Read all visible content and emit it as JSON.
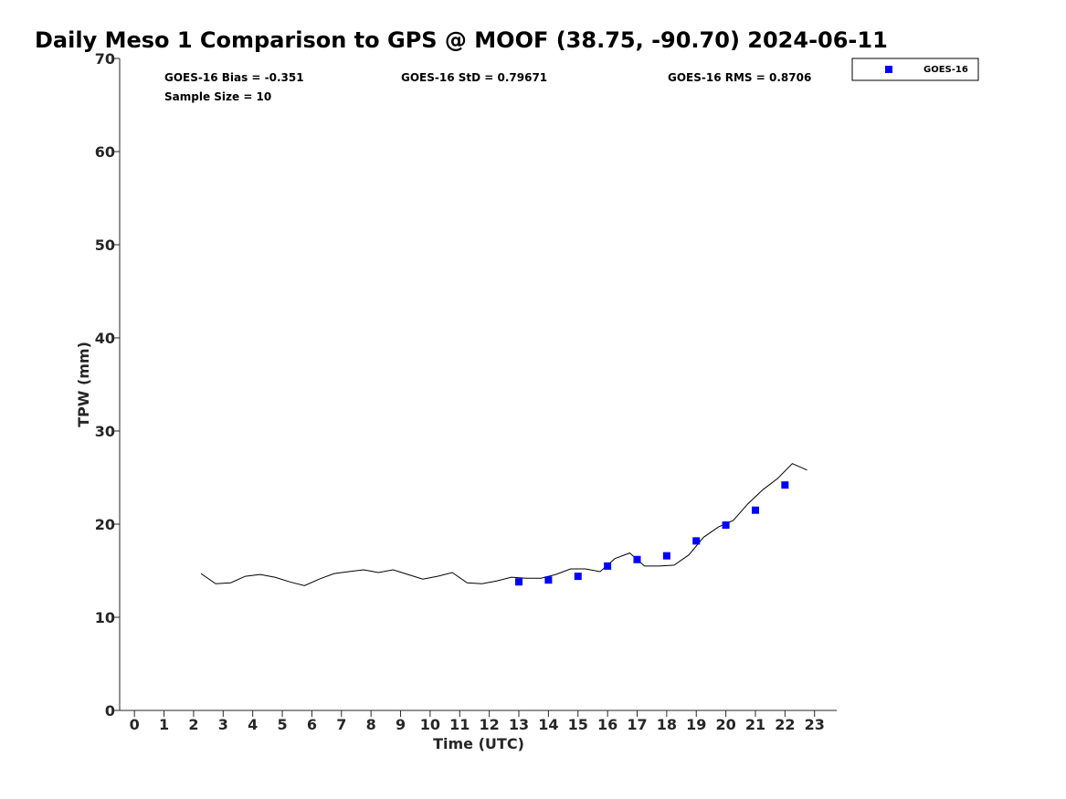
{
  "chart_data": {
    "type": "scatter",
    "title": "Daily Meso 1 Comparison to GPS @ MOOF (38.75, -90.70) 2024-06-11",
    "xlabel": "Time (UTC)",
    "ylabel": "TPW (mm)",
    "xlim": [
      -0.5,
      23.75
    ],
    "ylim": [
      0,
      70
    ],
    "xticks": [
      "0",
      "1",
      "2",
      "3",
      "4",
      "5",
      "6",
      "7",
      "8",
      "9",
      "10",
      "11",
      "12",
      "13",
      "14",
      "15",
      "16",
      "17",
      "18",
      "19",
      "20",
      "21",
      "22",
      "23"
    ],
    "yticks": [
      "0",
      "10",
      "20",
      "30",
      "40",
      "50",
      "60",
      "70"
    ],
    "grid": false,
    "legend_position": "outside-top-right",
    "stats": {
      "bias": "GOES-16 Bias = -0.351",
      "std": "GOES-16 StD = 0.79671",
      "rms": "GOES-16 RMS = 0.8706",
      "sample": "Sample Size = 10"
    },
    "series": [
      {
        "name": "GOES-16",
        "kind": "points",
        "marker": "square",
        "color": "#0000ff",
        "x": [
          13,
          14,
          15,
          16,
          17,
          18,
          19,
          20,
          21,
          22
        ],
        "y": [
          13.8,
          14.0,
          14.4,
          15.5,
          16.2,
          16.6,
          18.2,
          19.9,
          21.5,
          24.2
        ]
      },
      {
        "kind": "line",
        "color": "#000000",
        "x": [
          2.25,
          2.75,
          3.25,
          3.75,
          4.25,
          4.75,
          5.25,
          5.75,
          6.25,
          6.75,
          7.25,
          7.75,
          8.25,
          8.75,
          9.25,
          9.75,
          10.25,
          10.75,
          11.25,
          11.75,
          12.25,
          12.75,
          13.25,
          13.75,
          14.25,
          14.75,
          15.25,
          15.75,
          16.25,
          16.75,
          17.25,
          17.75,
          18.25,
          18.75,
          19.25,
          19.75,
          20.25,
          20.75,
          21.25,
          21.75,
          22.25,
          22.75
        ],
        "y": [
          14.7,
          13.6,
          13.7,
          14.4,
          14.6,
          14.3,
          13.8,
          13.4,
          14.1,
          14.7,
          14.9,
          15.1,
          14.8,
          15.1,
          14.6,
          14.1,
          14.4,
          14.8,
          13.7,
          13.6,
          13.9,
          14.3,
          14.2,
          14.2,
          14.6,
          15.2,
          15.2,
          14.9,
          16.3,
          16.9,
          15.5,
          15.5,
          15.6,
          16.7,
          18.6,
          19.7,
          20.4,
          22.2,
          23.7,
          24.9,
          26.5,
          25.8
        ]
      }
    ]
  }
}
